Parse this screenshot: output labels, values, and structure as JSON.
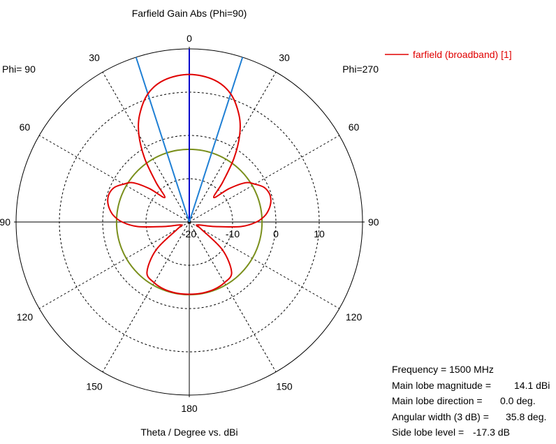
{
  "chart_data": {
    "type": "polar",
    "title": "Farfield Gain Abs (Phi=90)",
    "xlabel": "Theta / Degree vs. dBi",
    "side_labels": {
      "left": "Phi= 90",
      "right": "Phi=270"
    },
    "angle_tick_labels": [
      {
        "angle": 0,
        "text": "0"
      },
      {
        "angle": 30,
        "text": "30"
      },
      {
        "angle": -30,
        "text": "30"
      },
      {
        "angle": 60,
        "text": "60"
      },
      {
        "angle": -60,
        "text": "60"
      },
      {
        "angle": 90,
        "text": "90"
      },
      {
        "angle": -90,
        "text": "90"
      },
      {
        "angle": 120,
        "text": "120"
      },
      {
        "angle": -120,
        "text": "120"
      },
      {
        "angle": 150,
        "text": "150"
      },
      {
        "angle": -150,
        "text": "150"
      },
      {
        "angle": 180,
        "text": "180"
      }
    ],
    "radial_axis": {
      "min_db": -20,
      "max_db": 20,
      "ticks": [
        {
          "value": -20,
          "text": "-20"
        },
        {
          "value": -10,
          "text": "-10"
        },
        {
          "value": 0,
          "text": "0"
        },
        {
          "value": 10,
          "text": "10"
        }
      ]
    },
    "series": [
      {
        "name": "farfield (broadband) [1]",
        "color": "#e00000",
        "theta_deg": [
          0,
          10,
          17.9,
          25,
          30,
          35,
          40,
          45,
          50,
          55,
          60,
          65,
          70,
          75,
          80,
          85,
          90,
          95,
          100,
          110,
          120,
          130,
          140,
          150,
          160,
          170,
          180
        ],
        "gain_dbi": [
          14.1,
          13.3,
          11.1,
          7.2,
          3.3,
          -2.0,
          -8.0,
          -12.0,
          -8.0,
          -4.2,
          -2.5,
          -1.0,
          -0.4,
          -0.5,
          -1.2,
          -2.4,
          -4.5,
          -8.0,
          -14.0,
          -18.0,
          -17.0,
          -10.0,
          -4.8,
          -3.8,
          -3.4,
          -3.3,
          -3.3
        ]
      }
    ],
    "reference_circle": {
      "color": "#7a8f1c",
      "value_dbi": -3.2
    },
    "beam_lines": [
      {
        "theta_deg": 0,
        "color": "#0000cc",
        "role": "main lobe direction"
      },
      {
        "theta_deg": 17.9,
        "color": "#1f7fd4",
        "role": "3 dB edge"
      },
      {
        "theta_deg": -17.9,
        "color": "#1f7fd4",
        "role": "3 dB edge"
      }
    ],
    "grid": true
  },
  "info": {
    "frequency": "Frequency = 1500 MHz",
    "main_lobe_magnitude_label": "Main lobe magnitude =",
    "main_lobe_magnitude_value": "14.1 dBi",
    "main_lobe_direction_label": "Main lobe direction =",
    "main_lobe_direction_value": "0.0 deg.",
    "angular_width_label": "Angular width (3 dB) =",
    "angular_width_value": "35.8 deg.",
    "side_lobe_label": "Side lobe level =",
    "side_lobe_value": "-17.3 dB"
  }
}
